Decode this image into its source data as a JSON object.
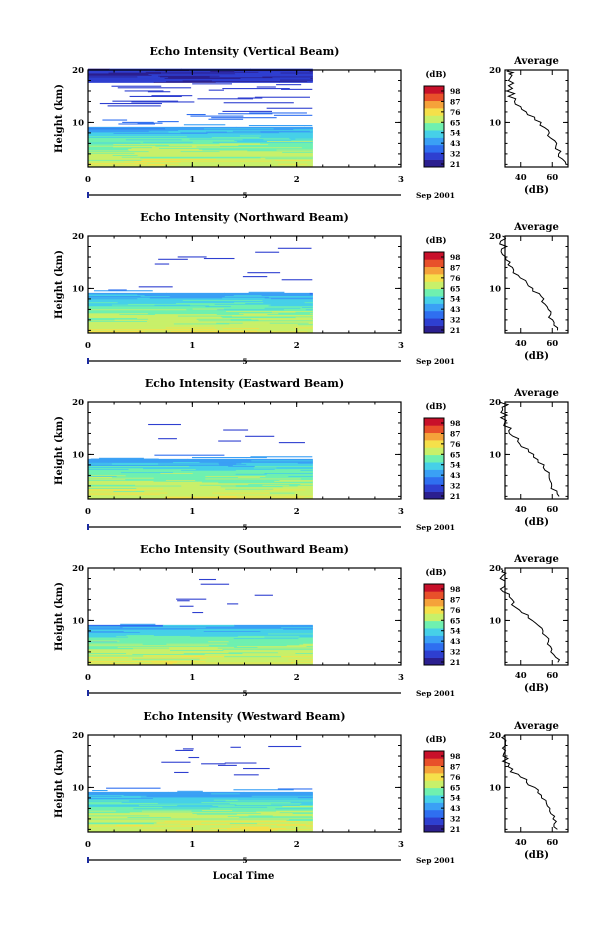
{
  "colorbar": {
    "unit_label": "(dB)",
    "tick_labels": [
      "98",
      "87",
      "76",
      "65",
      "54",
      "43",
      "32",
      "21"
    ],
    "colors": [
      "#2b1f8f",
      "#2e3fd0",
      "#2f6ff0",
      "#3aa0f5",
      "#46d0e8",
      "#6ff0b0",
      "#c8f06a",
      "#f5e04a",
      "#f5a23a",
      "#e8502a",
      "#c8102a"
    ]
  },
  "panels": [
    {
      "title": "Echo Intensity (Vertical Beam)",
      "ylabel": "Height (km)",
      "avg_title": "Average",
      "avg_xlabel": "(dB)",
      "date_label": "Sep 2001",
      "date_marker": "5"
    },
    {
      "title": "Echo Intensity (Northward Beam)",
      "ylabel": "Height (km)",
      "avg_title": "Average",
      "avg_xlabel": "(dB)",
      "date_label": "Sep 2001",
      "date_marker": "5"
    },
    {
      "title": "Echo Intensity (Eastward Beam)",
      "ylabel": "Height (km)",
      "avg_title": "Average",
      "avg_xlabel": "(dB)",
      "date_label": "Sep 2001",
      "date_marker": "5"
    },
    {
      "title": "Echo Intensity (Southward Beam)",
      "ylabel": "Height (km)",
      "avg_title": "Average",
      "avg_xlabel": "(dB)",
      "date_label": "Sep 2001",
      "date_marker": "5"
    },
    {
      "title": "Echo Intensity (Westward Beam)",
      "ylabel": "Height (km)",
      "avg_title": "Average",
      "avg_xlabel": "(dB)",
      "date_label": "Sep 2001",
      "date_marker": "5"
    }
  ],
  "footer": {
    "xlabel": "Local Time"
  },
  "chart_data": [
    {
      "type": "heatmap",
      "title": "Echo Intensity (Vertical Beam)",
      "ylabel": "Height (km)",
      "xlabel": "",
      "x_ticks": [
        "0",
        "1",
        "2",
        "3"
      ],
      "y_ticks": [
        "10",
        "20"
      ],
      "xlim": [
        0,
        3
      ],
      "ylim": [
        1.5,
        20
      ],
      "data_end_time": 2.15,
      "clim": [
        21,
        98
      ],
      "unit": "dB",
      "signal_top_km": 20
    },
    {
      "type": "heatmap",
      "title": "Echo Intensity (Northward Beam)",
      "ylabel": "Height (km)",
      "xlabel": "",
      "x_ticks": [
        "0",
        "1",
        "2",
        "3"
      ],
      "y_ticks": [
        "10",
        "20"
      ],
      "xlim": [
        0,
        3
      ],
      "ylim": [
        1.5,
        20
      ],
      "data_end_time": 2.15,
      "clim": [
        21,
        98
      ],
      "unit": "dB",
      "signal_top_km": 18
    },
    {
      "type": "heatmap",
      "title": "Echo Intensity (Eastward Beam)",
      "ylabel": "Height (km)",
      "xlabel": "",
      "x_ticks": [
        "0",
        "1",
        "2",
        "3"
      ],
      "y_ticks": [
        "10",
        "20"
      ],
      "xlim": [
        0,
        3
      ],
      "ylim": [
        1.5,
        20
      ],
      "data_end_time": 2.15,
      "clim": [
        21,
        98
      ],
      "unit": "dB",
      "signal_top_km": 17
    },
    {
      "type": "heatmap",
      "title": "Echo Intensity (Southward Beam)",
      "ylabel": "Height (km)",
      "xlabel": "",
      "x_ticks": [
        "0",
        "1",
        "2",
        "3"
      ],
      "y_ticks": [
        "10",
        "20"
      ],
      "xlim": [
        0,
        3
      ],
      "ylim": [
        1.5,
        20
      ],
      "data_end_time": 2.15,
      "clim": [
        21,
        98
      ],
      "unit": "dB",
      "signal_top_km": 18
    },
    {
      "type": "heatmap",
      "title": "Echo Intensity (Westward Beam)",
      "ylabel": "Height (km)",
      "xlabel": "Local Time",
      "x_ticks": [
        "0",
        "1",
        "2",
        "3"
      ],
      "y_ticks": [
        "10",
        "20"
      ],
      "xlim": [
        0,
        3
      ],
      "ylim": [
        1.5,
        20
      ],
      "data_end_time": 2.15,
      "clim": [
        21,
        98
      ],
      "unit": "dB",
      "signal_top_km": 18
    },
    {
      "type": "line",
      "title": "Average",
      "xlabel": "(dB)",
      "ylabel": "",
      "x_ticks": [
        "40",
        "60"
      ],
      "y_ticks": [
        "10",
        "20"
      ],
      "xlim": [
        30,
        70
      ],
      "ylim": [
        1.5,
        20
      ],
      "series": [
        {
          "x": [
            68,
            66,
            64,
            63,
            62,
            60,
            58,
            55,
            52,
            48,
            44,
            40,
            37,
            35,
            34,
            34,
            33,
            32,
            33,
            32
          ],
          "y": [
            2,
            3,
            4,
            5,
            6,
            7,
            8,
            9,
            10,
            11,
            12,
            13,
            14,
            15,
            16,
            17,
            18,
            19,
            19.5,
            20
          ]
        }
      ]
    }
  ]
}
